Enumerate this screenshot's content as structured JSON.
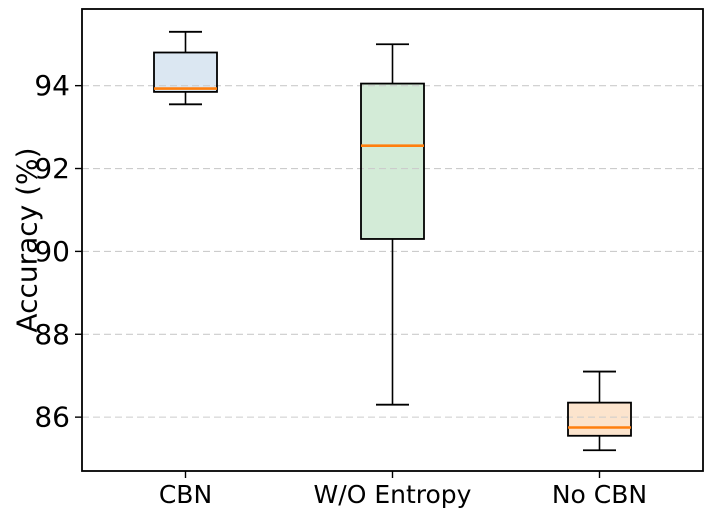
{
  "figure": {
    "ylabel": "Accuracy (%)"
  },
  "chart_data": {
    "type": "box",
    "title": "",
    "xlabel": "",
    "ylabel": "Accuracy (%)",
    "categories": [
      "CBN",
      "W/O Entropy",
      "No CBN"
    ],
    "series": [
      {
        "name": "CBN",
        "whisker_low": 93.55,
        "q1": 93.85,
        "median": 93.93,
        "q3": 94.8,
        "whisker_high": 95.3,
        "fill_color": "#dbe7f2"
      },
      {
        "name": "W/O Entropy",
        "whisker_low": 86.3,
        "q1": 90.3,
        "median": 92.55,
        "q3": 94.05,
        "whisker_high": 95.0,
        "fill_color": "#d3ebd7"
      },
      {
        "name": "No CBN",
        "whisker_low": 85.2,
        "q1": 85.55,
        "median": 85.75,
        "q3": 86.35,
        "whisker_high": 87.1,
        "fill_color": "#fce4cd"
      }
    ],
    "yticks": [
      86,
      88,
      90,
      92,
      94
    ],
    "ylim": [
      84.7,
      95.85
    ],
    "grid": "y-dashed",
    "legend": "none",
    "colors": {
      "median_line": "#ff7f0e",
      "box_edge": "#000000",
      "whisker": "#000000",
      "grid_line": "#cccccc",
      "axis": "#000000",
      "background": "#ffffff"
    }
  }
}
